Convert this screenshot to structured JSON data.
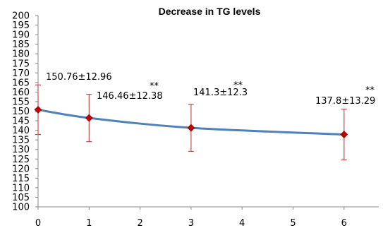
{
  "chart_data": {
    "type": "line",
    "title": "Decrease in TG levels",
    "xlabel": "",
    "ylabel": "",
    "x": [
      0,
      1,
      3,
      6
    ],
    "x_ticks": [
      "0",
      "1",
      "2",
      "3",
      "4",
      "5",
      "6"
    ],
    "y_ticks": [
      "100",
      "105",
      "110",
      "115",
      "120",
      "125",
      "130",
      "135",
      "140",
      "145",
      "150",
      "155",
      "160",
      "165",
      "170",
      "175",
      "180",
      "185",
      "190",
      "195",
      "200"
    ],
    "ylim": [
      100,
      200
    ],
    "grid": false,
    "legend": "none",
    "series": [
      {
        "values": [
          150.76,
          146.46,
          141.3,
          137.8
        ],
        "error": [
          12.96,
          12.38,
          12.3,
          13.29
        ],
        "color": "#4F81BD",
        "marker_color": "#C00000",
        "errorbar_color": "#C0504D"
      }
    ],
    "data_labels": [
      "150.76±12.96",
      "146.46±12.38",
      "141.3±12.3",
      "137.8±13.29"
    ],
    "annotations": [
      "**",
      "**",
      "**"
    ]
  }
}
